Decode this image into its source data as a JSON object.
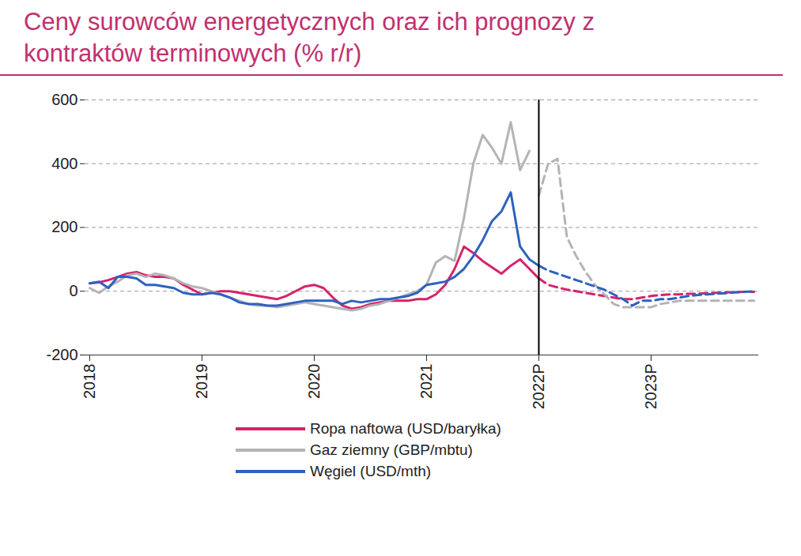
{
  "chart_data": {
    "type": "line",
    "title": "Ceny surowców energetycznych oraz ich prognozy z kontraktów terminowych (% r/r)",
    "categories": [
      "2018",
      null,
      null,
      null,
      null,
      null,
      null,
      null,
      null,
      null,
      null,
      null,
      "2019",
      null,
      null,
      null,
      null,
      null,
      null,
      null,
      null,
      null,
      null,
      null,
      "2020",
      null,
      null,
      null,
      null,
      null,
      null,
      null,
      null,
      null,
      null,
      null,
      "2021",
      null,
      null,
      null,
      null,
      null,
      null,
      null,
      null,
      null,
      null,
      null,
      "2022P",
      null,
      null,
      null,
      null,
      null,
      null,
      null,
      null,
      null,
      null,
      null,
      "2023P",
      null,
      null,
      null,
      null,
      null,
      null,
      null,
      null,
      null,
      null,
      null
    ],
    "ylim": [
      -200,
      600
    ],
    "yticks": [
      -200,
      0,
      200,
      400,
      600
    ],
    "grid": true,
    "legend": "bottom",
    "series": [
      {
        "name": "Ropa naftowa (USD/baryłka)",
        "color": "#d6236b",
        "line_style": "solid",
        "values": [
          25,
          28,
          35,
          45,
          55,
          60,
          50,
          45,
          45,
          40,
          20,
          5,
          -10,
          -5,
          0,
          0,
          -5,
          -10,
          -15,
          -20,
          -25,
          -15,
          0,
          15,
          20,
          10,
          -20,
          -45,
          -55,
          -50,
          -40,
          -35,
          -30,
          -30,
          -30,
          -25,
          -25,
          -10,
          20,
          70,
          140,
          120,
          95,
          75,
          55,
          80,
          100,
          70,
          40,
          null,
          null,
          null,
          null,
          null,
          null,
          null,
          null,
          null,
          null,
          null,
          null,
          null,
          null,
          null,
          null,
          null,
          null,
          null,
          null,
          null,
          null,
          null
        ]
      },
      {
        "name": "Gaz ziemny (GBP/mbtu)",
        "color": "#b4b4b4",
        "line_style": "solid",
        "values": [
          10,
          -5,
          15,
          30,
          50,
          55,
          45,
          55,
          50,
          40,
          25,
          15,
          10,
          0,
          -10,
          -20,
          -30,
          -40,
          -45,
          -45,
          -50,
          -45,
          -40,
          -35,
          -40,
          -45,
          -50,
          -55,
          -60,
          -55,
          -45,
          -40,
          -30,
          -20,
          -10,
          0,
          20,
          90,
          110,
          95,
          230,
          400,
          490,
          450,
          400,
          530,
          380,
          440,
          null,
          null,
          null,
          null,
          null,
          null,
          null,
          null,
          null,
          null,
          null,
          null,
          null,
          null,
          null,
          null,
          null,
          null,
          null,
          null,
          null,
          null,
          null,
          null
        ]
      },
      {
        "name": "Węgiel (USD/mth)",
        "color": "#2d62bf",
        "line_style": "solid",
        "values": [
          25,
          30,
          10,
          45,
          45,
          40,
          20,
          20,
          15,
          10,
          -5,
          -10,
          -10,
          -5,
          -10,
          -20,
          -35,
          -40,
          -40,
          -45,
          -45,
          -40,
          -35,
          -30,
          -30,
          -30,
          -30,
          -40,
          -30,
          -35,
          -30,
          -25,
          -25,
          -20,
          -15,
          -5,
          20,
          25,
          30,
          45,
          70,
          110,
          160,
          220,
          250,
          310,
          140,
          100,
          80,
          null,
          null,
          null,
          null,
          null,
          null,
          null,
          null,
          null,
          null,
          null,
          null,
          null,
          null,
          null,
          null,
          null,
          null,
          null,
          null,
          null,
          null,
          null
        ]
      },
      {
        "name": "Ropa naftowa (USD/baryłka)",
        "color": "#d6236b",
        "line_style": "dashed",
        "values": [
          null,
          null,
          null,
          null,
          null,
          null,
          null,
          null,
          null,
          null,
          null,
          null,
          null,
          null,
          null,
          null,
          null,
          null,
          null,
          null,
          null,
          null,
          null,
          null,
          null,
          null,
          null,
          null,
          null,
          null,
          null,
          null,
          null,
          null,
          null,
          null,
          null,
          null,
          null,
          null,
          null,
          null,
          null,
          null,
          null,
          null,
          null,
          null,
          40,
          20,
          12,
          5,
          0,
          -5,
          -10,
          -15,
          -20,
          -25,
          -25,
          -20,
          -15,
          -12,
          -10,
          -10,
          -8,
          -8,
          -6,
          -5,
          -4,
          -3,
          -2,
          -2
        ]
      },
      {
        "name": "Gaz ziemny (GBP/mbtu)",
        "color": "#b4b4b4",
        "line_style": "dashed",
        "values": [
          null,
          null,
          null,
          null,
          null,
          null,
          null,
          null,
          null,
          null,
          null,
          null,
          null,
          null,
          null,
          null,
          null,
          null,
          null,
          null,
          null,
          null,
          null,
          null,
          null,
          null,
          null,
          null,
          null,
          null,
          null,
          null,
          null,
          null,
          null,
          null,
          null,
          null,
          null,
          null,
          null,
          null,
          null,
          null,
          null,
          null,
          null,
          null,
          300,
          400,
          415,
          170,
          110,
          60,
          20,
          -10,
          -40,
          -50,
          -50,
          -50,
          -50,
          -40,
          -35,
          -30,
          -30,
          -30,
          -30,
          -30,
          -30,
          -30,
          -30,
          -30
        ]
      },
      {
        "name": "Węgiel (USD/mth)",
        "color": "#2d62bf",
        "line_style": "dashed",
        "values": [
          null,
          null,
          null,
          null,
          null,
          null,
          null,
          null,
          null,
          null,
          null,
          null,
          null,
          null,
          null,
          null,
          null,
          null,
          null,
          null,
          null,
          null,
          null,
          null,
          null,
          null,
          null,
          null,
          null,
          null,
          null,
          null,
          null,
          null,
          null,
          null,
          null,
          null,
          null,
          null,
          null,
          null,
          null,
          null,
          null,
          null,
          null,
          null,
          80,
          65,
          55,
          45,
          35,
          25,
          15,
          5,
          -10,
          -25,
          -45,
          -30,
          -30,
          -25,
          -25,
          -20,
          -15,
          -12,
          -10,
          -8,
          -6,
          -4,
          -2,
          0
        ]
      }
    ]
  }
}
